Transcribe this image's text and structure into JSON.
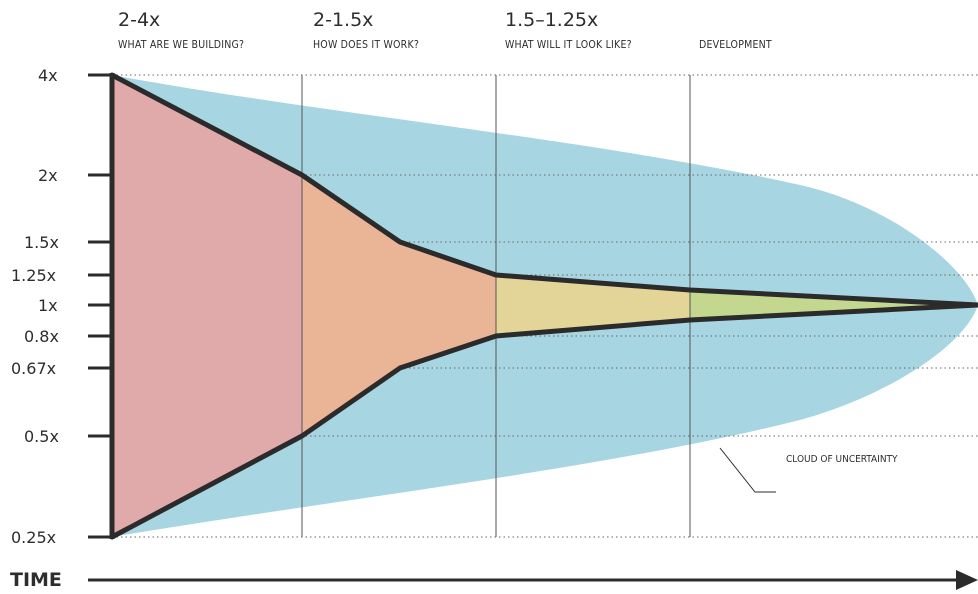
{
  "phases": [
    {
      "range": "2-4x",
      "subtitle": "WHAT ARE WE BUILDING?"
    },
    {
      "range": "2-1.5x",
      "subtitle": "HOW DOES IT WORK?"
    },
    {
      "range": "1.5–1.25x",
      "subtitle": "WHAT WILL IT LOOK LIKE?"
    },
    {
      "range": "",
      "subtitle": "DEVELOPMENT"
    }
  ],
  "y_ticks": [
    "4x",
    "2x",
    "1.5x",
    "1.25x",
    "1x",
    "0.8x",
    "0.67x",
    "0.5x",
    "0.25x"
  ],
  "x_axis_label": "TIME",
  "cloud_label": "CLOUD OF UNCERTAINTY",
  "chart_data": {
    "type": "area",
    "y_scale": "log",
    "y_tick_values": [
      4,
      2,
      1.5,
      1.25,
      1,
      0.8,
      0.67,
      0.5,
      0.25
    ],
    "upper_bound": [
      4,
      2,
      1.5,
      1.25,
      1.12,
      1
    ],
    "lower_bound": [
      0.25,
      0.5,
      0.67,
      0.8,
      0.89,
      1
    ],
    "colors": {
      "cloud": "#a8d5e2",
      "phase1": "#e0a9aa",
      "phase2": "#e9b596",
      "phase3": "#e3d598",
      "phase4": "#c3d88e",
      "outline": "#2b2b2b"
    }
  }
}
